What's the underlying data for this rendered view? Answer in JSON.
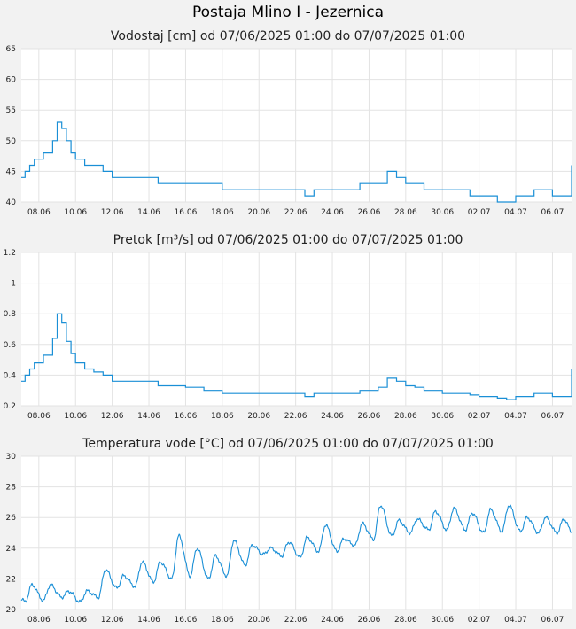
{
  "page_title": "Postaja Mlino I - Jezernica",
  "x_tick_labels": [
    "08.06",
    "10.06",
    "12.06",
    "14.06",
    "16.06",
    "18.06",
    "20.06",
    "22.06",
    "24.06",
    "26.06",
    "28.06",
    "30.06",
    "02.07",
    "04.07",
    "06.07"
  ],
  "colors": {
    "line": "#1a8fd6",
    "grid": "#e3e3e3",
    "plot_bg": "#ffffff",
    "page_bg": "#f2f2f2"
  },
  "chart_data": [
    {
      "type": "line",
      "title": "Vodostaj [cm] od 07/06/2025 01:00 do 07/07/2025 01:00",
      "x_range": [
        "2025-06-07 01:00",
        "2025-07-07 01:00"
      ],
      "ylim": [
        40,
        65
      ],
      "y_ticks": [
        40,
        45,
        50,
        55,
        60,
        65
      ],
      "grid": true,
      "series": [
        {
          "x": [
            "2025-06-07 01:00",
            "2025-06-07 06:00",
            "2025-06-07 12:00",
            "2025-06-07 18:00",
            "2025-06-08 00:00",
            "2025-06-08 06:00",
            "2025-06-08 12:00",
            "2025-06-08 18:00",
            "2025-06-09 00:00",
            "2025-06-09 06:00",
            "2025-06-09 12:00",
            "2025-06-09 18:00",
            "2025-06-10 00:00",
            "2025-06-10 12:00",
            "2025-06-11 00:00",
            "2025-06-11 12:00",
            "2025-06-12 00:00",
            "2025-06-12 12:00",
            "2025-06-13 12:00",
            "2025-06-14 00:00",
            "2025-06-14 12:00",
            "2025-06-15 00:00",
            "2025-06-16 00:00",
            "2025-06-16 12:00",
            "2025-06-17 00:00",
            "2025-06-18 00:00",
            "2025-06-19 00:00",
            "2025-06-19 12:00",
            "2025-06-20 00:00",
            "2025-06-20 12:00",
            "2025-06-21 00:00",
            "2025-06-22 00:00",
            "2025-06-22 12:00",
            "2025-06-23 00:00",
            "2025-06-24 00:00",
            "2025-06-25 00:00",
            "2025-06-25 12:00",
            "2025-06-26 00:00",
            "2025-06-26 12:00",
            "2025-06-27 00:00",
            "2025-06-27 12:00",
            "2025-06-28 00:00",
            "2025-06-28 12:00",
            "2025-06-29 00:00",
            "2025-06-30 00:00",
            "2025-07-01 00:00",
            "2025-07-01 12:00",
            "2025-07-02 00:00",
            "2025-07-02 12:00",
            "2025-07-03 00:00",
            "2025-07-03 12:00",
            "2025-07-04 00:00",
            "2025-07-05 00:00",
            "2025-07-06 00:00",
            "2025-07-07 00:00",
            "2025-07-07 01:00"
          ],
          "y": [
            44,
            45,
            46,
            47,
            47,
            48,
            48,
            50,
            53,
            52,
            50,
            48,
            47,
            46,
            46,
            45,
            44,
            44,
            44,
            44,
            43,
            43,
            43,
            43,
            43,
            42,
            42,
            42,
            42,
            42,
            42,
            42,
            41,
            42,
            42,
            42,
            43,
            43,
            43,
            45,
            44,
            43,
            43,
            42,
            42,
            42,
            41,
            41,
            41,
            40,
            40,
            41,
            42,
            41,
            41,
            46
          ]
        }
      ]
    },
    {
      "type": "line",
      "title": "Pretok [m³/s] od 07/06/2025 01:00 do 07/07/2025 01:00",
      "x_range": [
        "2025-06-07 01:00",
        "2025-07-07 01:00"
      ],
      "ylim": [
        0.2,
        1.2
      ],
      "y_ticks": [
        0.2,
        0.4,
        0.6,
        0.8,
        1,
        1.2
      ],
      "grid": true,
      "series": [
        {
          "x": [
            "2025-06-07 01:00",
            "2025-06-07 06:00",
            "2025-06-07 12:00",
            "2025-06-07 18:00",
            "2025-06-08 00:00",
            "2025-06-08 06:00",
            "2025-06-08 12:00",
            "2025-06-08 18:00",
            "2025-06-09 00:00",
            "2025-06-09 06:00",
            "2025-06-09 12:00",
            "2025-06-09 18:00",
            "2025-06-10 00:00",
            "2025-06-10 12:00",
            "2025-06-11 00:00",
            "2025-06-11 12:00",
            "2025-06-12 00:00",
            "2025-06-12 12:00",
            "2025-06-13 12:00",
            "2025-06-14 00:00",
            "2025-06-14 12:00",
            "2025-06-15 00:00",
            "2025-06-16 00:00",
            "2025-06-16 12:00",
            "2025-06-17 00:00",
            "2025-06-18 00:00",
            "2025-06-19 00:00",
            "2025-06-19 12:00",
            "2025-06-20 00:00",
            "2025-06-20 12:00",
            "2025-06-21 00:00",
            "2025-06-22 00:00",
            "2025-06-22 12:00",
            "2025-06-23 00:00",
            "2025-06-24 00:00",
            "2025-06-25 00:00",
            "2025-06-25 12:00",
            "2025-06-26 00:00",
            "2025-06-26 12:00",
            "2025-06-27 00:00",
            "2025-06-27 12:00",
            "2025-06-28 00:00",
            "2025-06-28 12:00",
            "2025-06-29 00:00",
            "2025-06-30 00:00",
            "2025-07-01 00:00",
            "2025-07-01 12:00",
            "2025-07-02 00:00",
            "2025-07-02 12:00",
            "2025-07-03 00:00",
            "2025-07-03 12:00",
            "2025-07-04 00:00",
            "2025-07-05 00:00",
            "2025-07-06 00:00",
            "2025-07-07 00:00",
            "2025-07-07 01:00"
          ],
          "y": [
            0.36,
            0.4,
            0.44,
            0.48,
            0.48,
            0.53,
            0.53,
            0.64,
            0.8,
            0.74,
            0.62,
            0.54,
            0.48,
            0.44,
            0.42,
            0.4,
            0.36,
            0.36,
            0.36,
            0.36,
            0.33,
            0.33,
            0.32,
            0.32,
            0.3,
            0.28,
            0.28,
            0.28,
            0.28,
            0.28,
            0.28,
            0.28,
            0.26,
            0.28,
            0.28,
            0.28,
            0.3,
            0.3,
            0.32,
            0.38,
            0.36,
            0.33,
            0.32,
            0.3,
            0.28,
            0.28,
            0.27,
            0.26,
            0.26,
            0.25,
            0.24,
            0.26,
            0.28,
            0.26,
            0.26,
            0.44
          ]
        }
      ]
    },
    {
      "type": "line",
      "title": "Temperatura vode [°C] od 07/06/2025 01:00 do 07/07/2025 01:00",
      "x_range": [
        "2025-06-07 01:00",
        "2025-07-07 01:00"
      ],
      "ylim": [
        20,
        30
      ],
      "y_ticks": [
        20,
        22,
        24,
        26,
        28,
        30
      ],
      "grid": true,
      "daily_profile": {
        "day_dates": [
          "2025-06-07",
          "2025-06-08",
          "2025-06-09",
          "2025-06-10",
          "2025-06-11",
          "2025-06-12",
          "2025-06-13",
          "2025-06-14",
          "2025-06-15",
          "2025-06-16",
          "2025-06-17",
          "2025-06-18",
          "2025-06-19",
          "2025-06-20",
          "2025-06-21",
          "2025-06-22",
          "2025-06-23",
          "2025-06-24",
          "2025-06-25",
          "2025-06-26",
          "2025-06-27",
          "2025-06-28",
          "2025-06-29",
          "2025-06-30",
          "2025-07-01",
          "2025-07-02",
          "2025-07-03",
          "2025-07-04",
          "2025-07-05",
          "2025-07-06"
        ],
        "daily_min": [
          20.5,
          20.6,
          20.8,
          20.5,
          20.8,
          21.4,
          21.5,
          21.8,
          22.0,
          22.2,
          22.0,
          22.2,
          22.9,
          23.6,
          23.5,
          23.4,
          23.8,
          23.8,
          24.2,
          24.6,
          24.8,
          25.0,
          25.2,
          25.2,
          25.2,
          25.0,
          25.1,
          25.1,
          25.0,
          25.0
        ],
        "daily_max": [
          21.6,
          21.6,
          21.2,
          21.2,
          22.6,
          22.2,
          23.1,
          23.1,
          24.8,
          24.0,
          23.5,
          24.5,
          24.2,
          24.0,
          24.4,
          24.7,
          25.5,
          24.6,
          25.6,
          26.8,
          25.8,
          25.9,
          26.4,
          26.6,
          26.3,
          26.5,
          26.8,
          26.0,
          26.0,
          25.9
        ],
        "peak_hour": 15,
        "min_hour": 6
      },
      "series": [
        {
          "x": [
            "2025-06-07 01:00",
            "2025-07-07 01:00"
          ],
          "y": [
            20.7,
            25.1
          ]
        }
      ]
    }
  ]
}
